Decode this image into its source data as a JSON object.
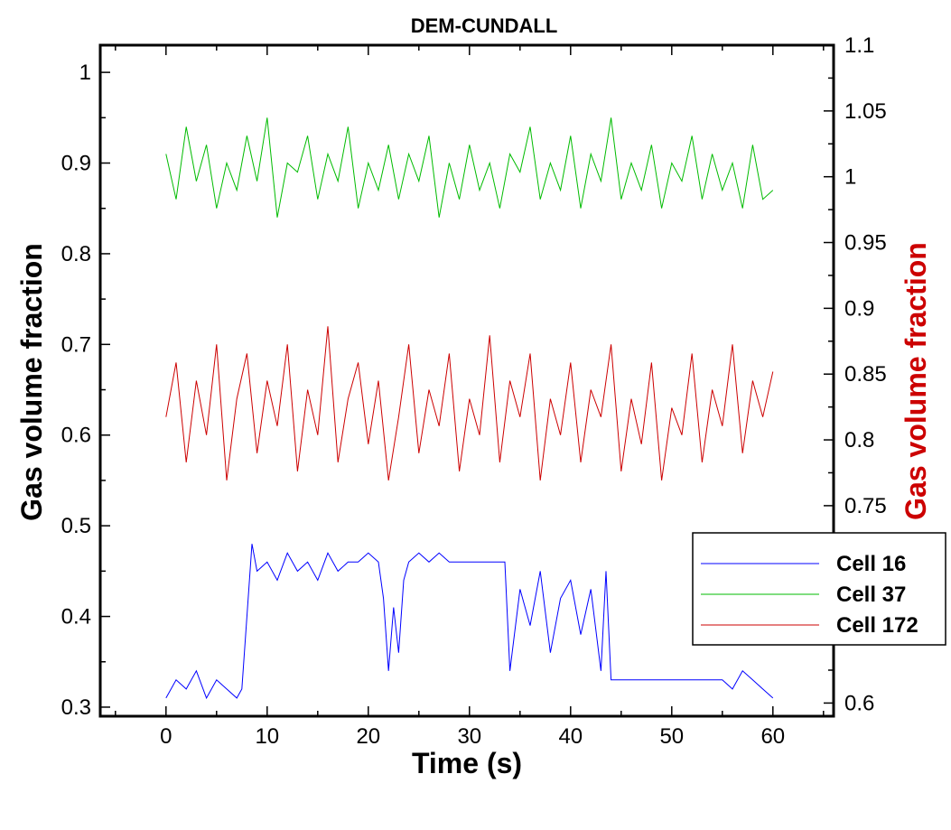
{
  "chart_data": {
    "type": "line",
    "title": "DEM-CUNDALL",
    "xlabel": "Time (s)",
    "ylabel": "Gas volume fraction",
    "ylabel_right": "Gas volume fraction",
    "xlim": [
      -6.5,
      66
    ],
    "ylim": [
      0.29,
      1.03
    ],
    "ylim_right": [
      0.59,
      1.1
    ],
    "x_ticks": [
      0,
      10,
      20,
      30,
      40,
      50,
      60
    ],
    "y_ticks": [
      0.3,
      0.4,
      0.5,
      0.6,
      0.7,
      0.8,
      0.9,
      1
    ],
    "y_ticks_right": [
      0.6,
      0.65,
      0.7,
      0.75,
      0.8,
      0.85,
      0.9,
      0.95,
      1,
      1.05,
      1.1
    ],
    "legend_position": "lower-right",
    "grid": false,
    "colors": {
      "right_axis_label": "#cc0000"
    },
    "series": [
      {
        "name": "Cell 16",
        "color": "#0000ff",
        "x": [
          0,
          1,
          2,
          3,
          4,
          5,
          6,
          7,
          7.5,
          8,
          8.5,
          9,
          10,
          11,
          12,
          13,
          14,
          15,
          16,
          17,
          18,
          19,
          20,
          21,
          21.5,
          22,
          22.5,
          23,
          23.5,
          24,
          25,
          26,
          27,
          28,
          29,
          30,
          31,
          32,
          33,
          33.5,
          34,
          35,
          36,
          37,
          38,
          39,
          40,
          41,
          42,
          43,
          43.5,
          44,
          45,
          46,
          47,
          48,
          49,
          50,
          51,
          52,
          53,
          54,
          55,
          56,
          57,
          58,
          59,
          60
        ],
        "values": [
          0.31,
          0.33,
          0.32,
          0.34,
          0.31,
          0.33,
          0.32,
          0.31,
          0.32,
          0.4,
          0.48,
          0.45,
          0.46,
          0.44,
          0.47,
          0.45,
          0.46,
          0.44,
          0.47,
          0.45,
          0.46,
          0.46,
          0.47,
          0.46,
          0.42,
          0.34,
          0.41,
          0.36,
          0.44,
          0.46,
          0.47,
          0.46,
          0.47,
          0.46,
          0.46,
          0.46,
          0.46,
          0.46,
          0.46,
          0.46,
          0.34,
          0.43,
          0.39,
          0.45,
          0.36,
          0.42,
          0.44,
          0.38,
          0.43,
          0.34,
          0.45,
          0.33,
          0.33,
          0.33,
          0.33,
          0.33,
          0.33,
          0.33,
          0.33,
          0.33,
          0.33,
          0.33,
          0.33,
          0.32,
          0.34,
          0.33,
          0.32,
          0.31
        ]
      },
      {
        "name": "Cell 37",
        "color": "#00bb00",
        "x": [
          0,
          1,
          2,
          3,
          4,
          5,
          6,
          7,
          8,
          9,
          10,
          11,
          12,
          13,
          14,
          15,
          16,
          17,
          18,
          19,
          20,
          21,
          22,
          23,
          24,
          25,
          26,
          27,
          28,
          29,
          30,
          31,
          32,
          33,
          34,
          35,
          36,
          37,
          38,
          39,
          40,
          41,
          42,
          43,
          44,
          45,
          46,
          47,
          48,
          49,
          50,
          51,
          52,
          53,
          54,
          55,
          56,
          57,
          58,
          59,
          60
        ],
        "values": [
          0.91,
          0.86,
          0.94,
          0.88,
          0.92,
          0.85,
          0.9,
          0.87,
          0.93,
          0.88,
          0.95,
          0.84,
          0.9,
          0.89,
          0.93,
          0.86,
          0.91,
          0.88,
          0.94,
          0.85,
          0.9,
          0.87,
          0.92,
          0.86,
          0.91,
          0.88,
          0.93,
          0.84,
          0.9,
          0.86,
          0.92,
          0.87,
          0.9,
          0.85,
          0.91,
          0.89,
          0.94,
          0.86,
          0.9,
          0.87,
          0.93,
          0.85,
          0.91,
          0.88,
          0.95,
          0.86,
          0.9,
          0.87,
          0.92,
          0.85,
          0.9,
          0.88,
          0.93,
          0.86,
          0.91,
          0.87,
          0.9,
          0.85,
          0.92,
          0.86,
          0.87
        ]
      },
      {
        "name": "Cell 172",
        "color": "#cc0000",
        "x": [
          0,
          1,
          2,
          3,
          4,
          5,
          6,
          7,
          8,
          9,
          10,
          11,
          12,
          13,
          14,
          15,
          16,
          17,
          18,
          19,
          20,
          21,
          22,
          23,
          24,
          25,
          26,
          27,
          28,
          29,
          30,
          31,
          32,
          33,
          34,
          35,
          36,
          37,
          38,
          39,
          40,
          41,
          42,
          43,
          44,
          45,
          46,
          47,
          48,
          49,
          50,
          51,
          52,
          53,
          54,
          55,
          56,
          57,
          58,
          59,
          60
        ],
        "values": [
          0.62,
          0.68,
          0.57,
          0.66,
          0.6,
          0.7,
          0.55,
          0.64,
          0.69,
          0.58,
          0.66,
          0.61,
          0.7,
          0.56,
          0.65,
          0.6,
          0.72,
          0.57,
          0.64,
          0.68,
          0.59,
          0.66,
          0.55,
          0.62,
          0.7,
          0.58,
          0.65,
          0.61,
          0.69,
          0.56,
          0.64,
          0.6,
          0.71,
          0.57,
          0.66,
          0.62,
          0.69,
          0.55,
          0.64,
          0.6,
          0.68,
          0.57,
          0.65,
          0.62,
          0.7,
          0.56,
          0.64,
          0.59,
          0.68,
          0.55,
          0.63,
          0.6,
          0.69,
          0.57,
          0.65,
          0.61,
          0.7,
          0.58,
          0.66,
          0.62,
          0.67
        ]
      }
    ]
  }
}
